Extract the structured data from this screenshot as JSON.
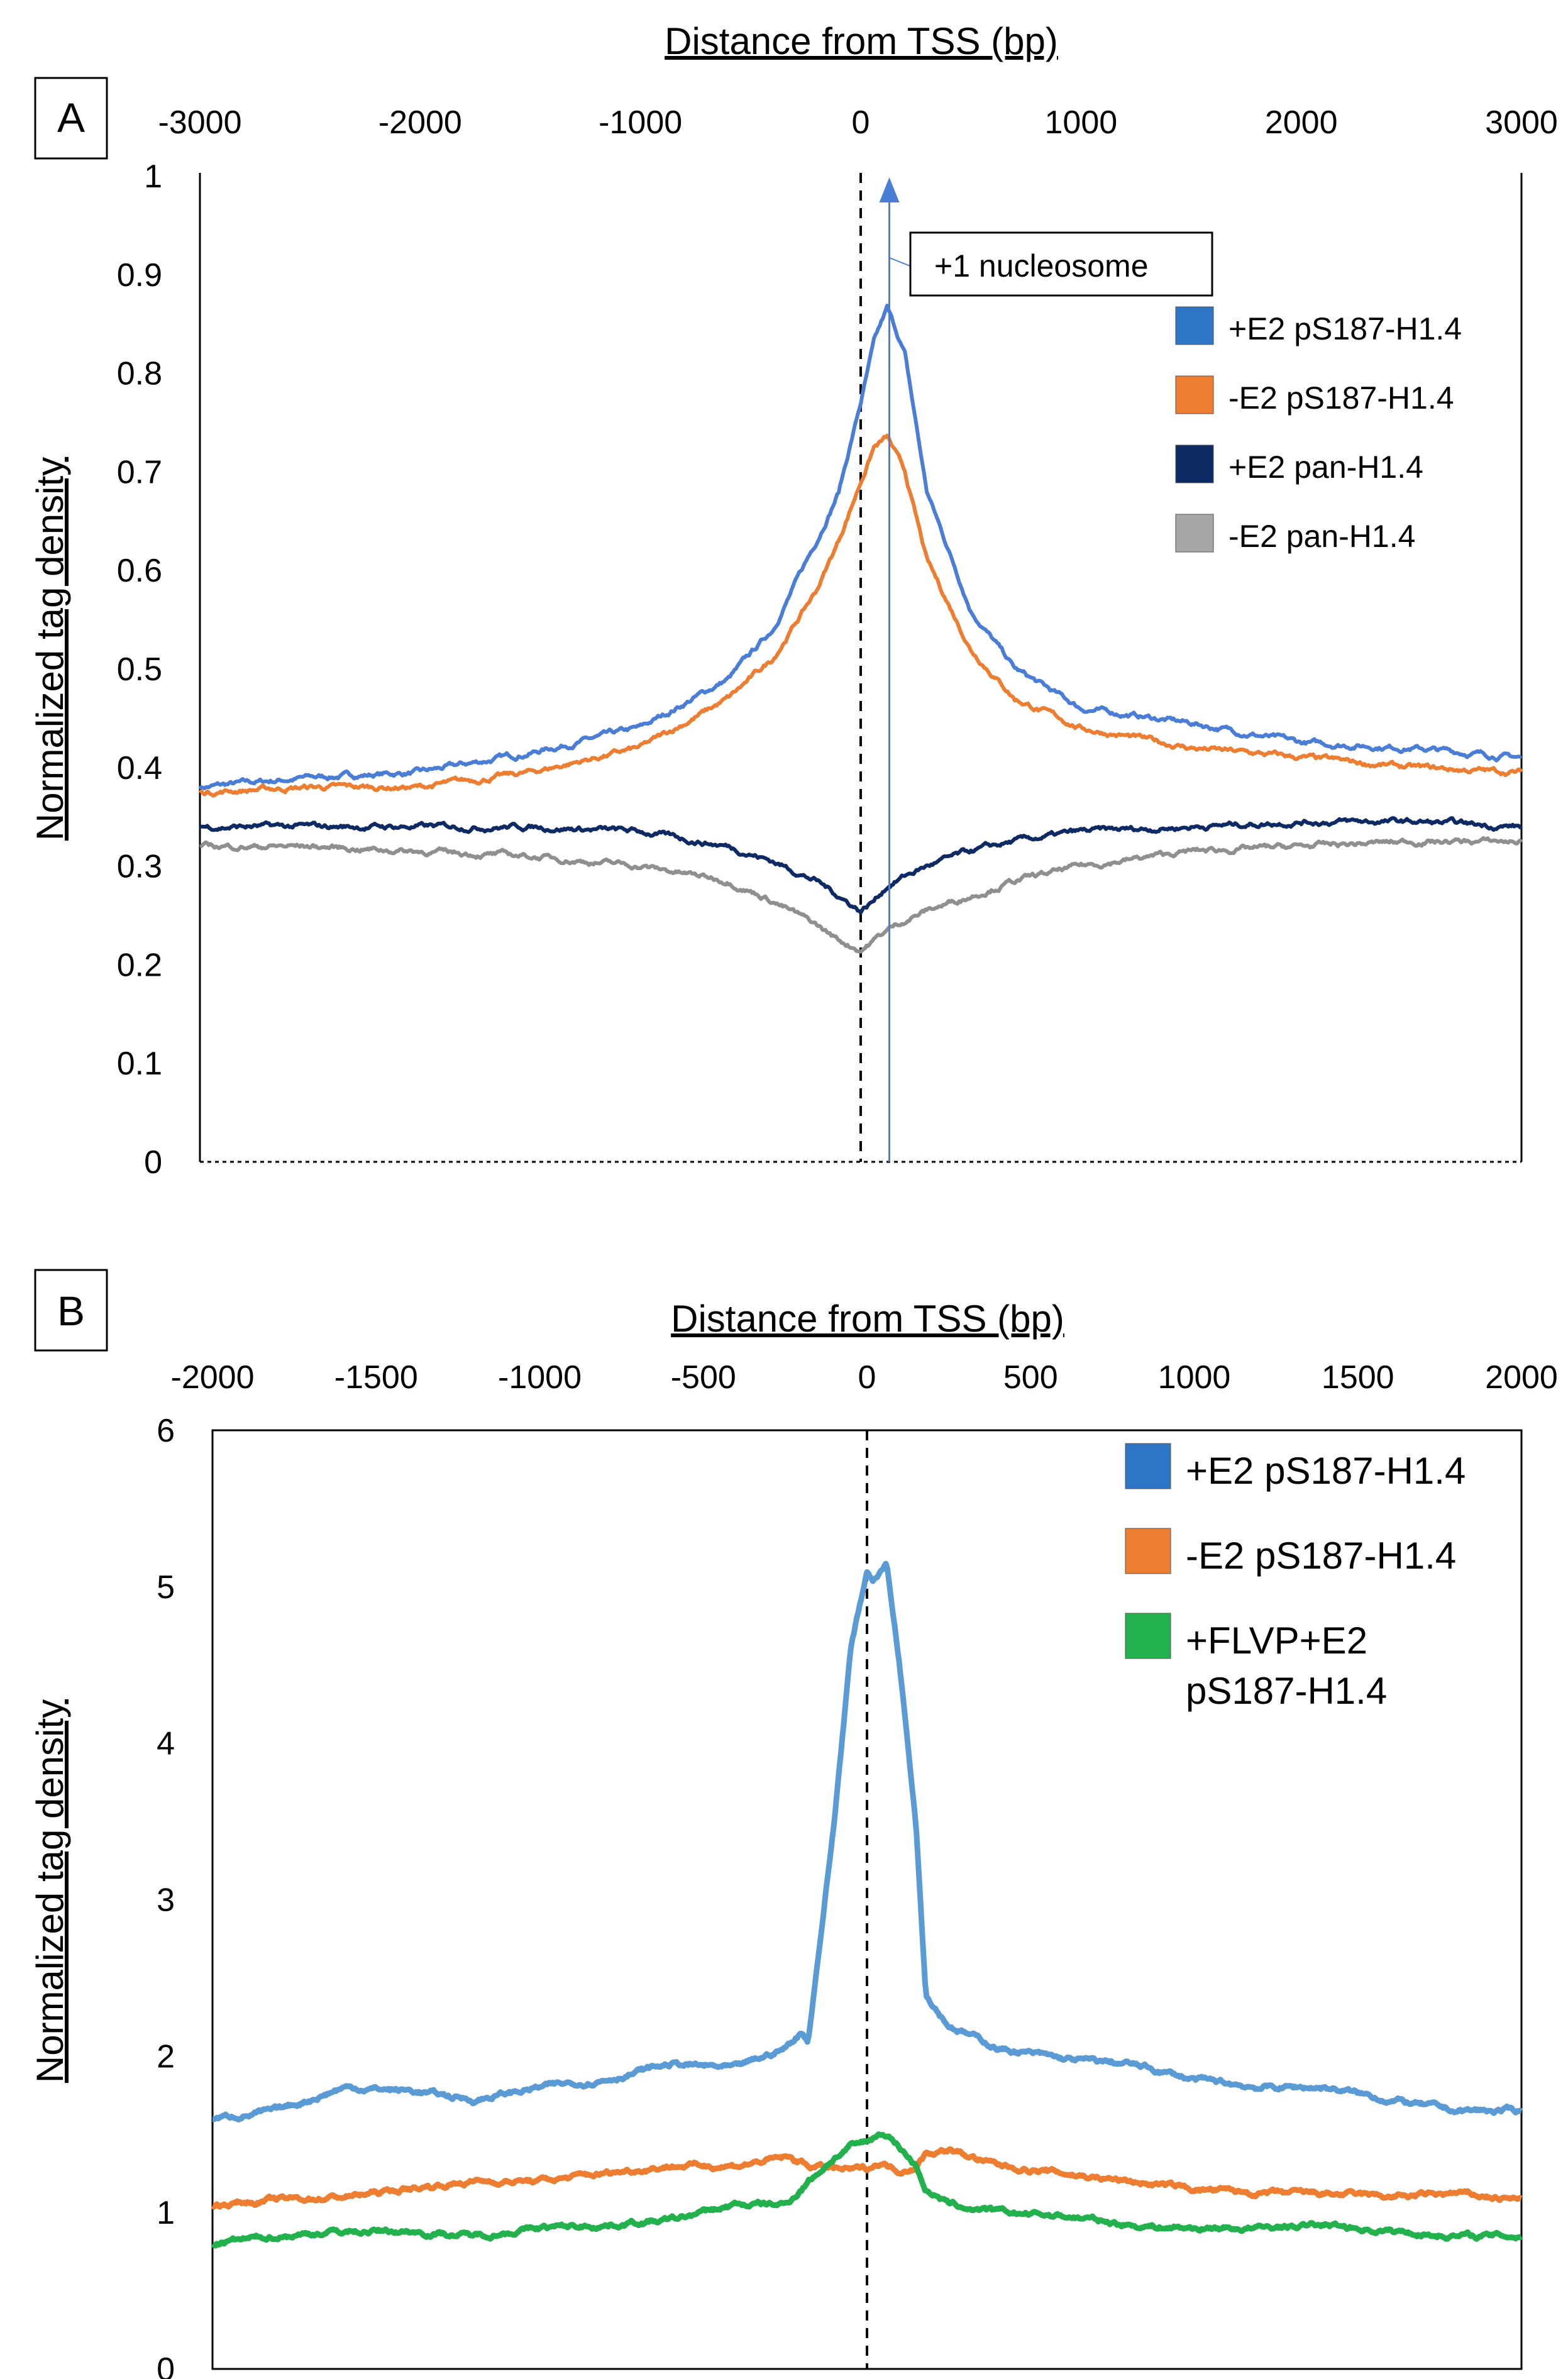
{
  "chart_data": [
    {
      "panel": "A",
      "type": "line",
      "xlabel": "Distance from TSS (bp)",
      "ylabel": "Normalized tag density",
      "xlim": [
        -3000,
        3000
      ],
      "ylim": [
        0,
        1
      ],
      "x_ticks": [
        "-3000",
        "-2000",
        "-1000",
        "0",
        "1000",
        "2000",
        "3000"
      ],
      "y_ticks": [
        "0",
        "0.1",
        "0.2",
        "0.3",
        "0.4",
        "0.5",
        "0.6",
        "0.7",
        "0.8",
        "0.9",
        "1"
      ],
      "x_tick_values": [
        -3000,
        -2000,
        -1000,
        0,
        1000,
        2000,
        3000
      ],
      "y_tick_values": [
        0,
        0.1,
        0.2,
        0.3,
        0.4,
        0.5,
        0.6,
        0.7,
        0.8,
        0.9,
        1
      ],
      "tss_line": 0,
      "annotation": {
        "text": "+1 nucleosome",
        "x": 130
      },
      "x": [
        -3000,
        -2500,
        -2000,
        -1500,
        -1000,
        -600,
        -400,
        -200,
        -100,
        0,
        60,
        120,
        200,
        300,
        500,
        700,
        1000,
        1500,
        2000,
        2500,
        3000
      ],
      "series": [
        {
          "name": "+E2 pS187-H1.4",
          "color": "#4a7ed6",
          "values": [
            0.38,
            0.39,
            0.395,
            0.415,
            0.44,
            0.49,
            0.54,
            0.63,
            0.68,
            0.77,
            0.83,
            0.865,
            0.82,
            0.68,
            0.56,
            0.5,
            0.46,
            0.445,
            0.425,
            0.42,
            0.41
          ]
        },
        {
          "name": "-E2 pS187-H1.4",
          "color": "#ed7d31",
          "values": [
            0.375,
            0.38,
            0.38,
            0.395,
            0.42,
            0.47,
            0.51,
            0.58,
            0.63,
            0.69,
            0.725,
            0.735,
            0.7,
            0.61,
            0.52,
            0.47,
            0.44,
            0.42,
            0.41,
            0.4,
            0.395
          ]
        },
        {
          "name": "+E2 pan-H1.4",
          "color": "#0e2a64",
          "values": [
            0.34,
            0.34,
            0.34,
            0.34,
            0.335,
            0.32,
            0.305,
            0.285,
            0.27,
            0.255,
            0.265,
            0.28,
            0.29,
            0.3,
            0.315,
            0.325,
            0.335,
            0.34,
            0.345,
            0.345,
            0.34
          ]
        },
        {
          "name": "-E2 pan-H1.4",
          "color": "#8f8f8f",
          "values": [
            0.32,
            0.32,
            0.315,
            0.31,
            0.3,
            0.285,
            0.265,
            0.24,
            0.225,
            0.215,
            0.225,
            0.235,
            0.245,
            0.255,
            0.27,
            0.285,
            0.3,
            0.315,
            0.32,
            0.325,
            0.325
          ]
        }
      ],
      "legend": [
        {
          "label": "+E2 pS187-H1.4",
          "swatch": "#2e75c8"
        },
        {
          "label": "-E2 pS187-H1.4",
          "swatch": "#ed7d31"
        },
        {
          "label": "+E2 pan-H1.4",
          "swatch": "#0e2a64"
        },
        {
          "label": "-E2 pan-H1.4",
          "swatch": "#a6a6a6"
        }
      ]
    },
    {
      "panel": "B",
      "type": "line",
      "xlabel": "Distance from TSS (bp)",
      "ylabel": "Normalized tag density",
      "xlim": [
        -2000,
        2000
      ],
      "ylim": [
        0,
        6
      ],
      "x_ticks": [
        "-2000",
        "-1500",
        "-1000",
        "-500",
        "0",
        "500",
        "1000",
        "1500",
        "2000"
      ],
      "y_ticks": [
        "0",
        "1",
        "2",
        "3",
        "4",
        "5",
        "6"
      ],
      "x_tick_values": [
        -2000,
        -1500,
        -1000,
        -500,
        0,
        500,
        1000,
        1500,
        2000
      ],
      "y_tick_values": [
        0,
        1,
        2,
        3,
        4,
        5,
        6
      ],
      "tss_line": 0,
      "x": [
        -2000,
        -1800,
        -1600,
        -1400,
        -1200,
        -1000,
        -800,
        -600,
        -400,
        -250,
        -200,
        -180,
        -100,
        -50,
        0,
        20,
        40,
        60,
        100,
        150,
        180,
        250,
        400,
        600,
        800,
        1000,
        1200,
        1400,
        1600,
        1800,
        2000
      ],
      "series": [
        {
          "name": "+E2 pS187-H1.4",
          "color": "#5b9bd5",
          "values": [
            1.6,
            1.65,
            1.8,
            1.78,
            1.72,
            1.8,
            1.85,
            1.95,
            1.92,
            2.05,
            2.15,
            2.1,
            3.5,
            4.6,
            5.1,
            5.05,
            5.1,
            5.15,
            4.5,
            3.5,
            2.4,
            2.2,
            2.05,
            1.98,
            1.95,
            1.85,
            1.8,
            1.8,
            1.72,
            1.65,
            1.65
          ]
        },
        {
          "name": "-E2 pS187-H1.4",
          "color": "#ed7d31",
          "values": [
            1.05,
            1.08,
            1.1,
            1.15,
            1.2,
            1.2,
            1.25,
            1.3,
            1.3,
            1.35,
            1.32,
            1.3,
            1.28,
            1.27,
            1.28,
            1.3,
            1.32,
            1.3,
            1.27,
            1.3,
            1.38,
            1.4,
            1.3,
            1.25,
            1.2,
            1.15,
            1.12,
            1.12,
            1.1,
            1.12,
            1.08
          ]
        },
        {
          "name": "+FLVP+E2 pS187-H1.4",
          "color": "#22b14c",
          "values": [
            0.8,
            0.85,
            0.88,
            0.88,
            0.85,
            0.9,
            0.92,
            0.95,
            1.05,
            1.05,
            1.15,
            1.2,
            1.35,
            1.42,
            1.45,
            1.48,
            1.5,
            1.5,
            1.42,
            1.3,
            1.15,
            1.05,
            1.0,
            0.98,
            0.92,
            0.9,
            0.9,
            0.92,
            0.88,
            0.85,
            0.85
          ]
        }
      ],
      "legend": [
        {
          "label": "+E2 pS187-H1.4",
          "swatch": "#2e75c8"
        },
        {
          "label": "-E2 pS187-H1.4",
          "swatch": "#ed7d31"
        },
        {
          "label": "+FLVP+E2",
          "label2": "pS187-H1.4",
          "swatch": "#22b14c"
        }
      ]
    }
  ]
}
